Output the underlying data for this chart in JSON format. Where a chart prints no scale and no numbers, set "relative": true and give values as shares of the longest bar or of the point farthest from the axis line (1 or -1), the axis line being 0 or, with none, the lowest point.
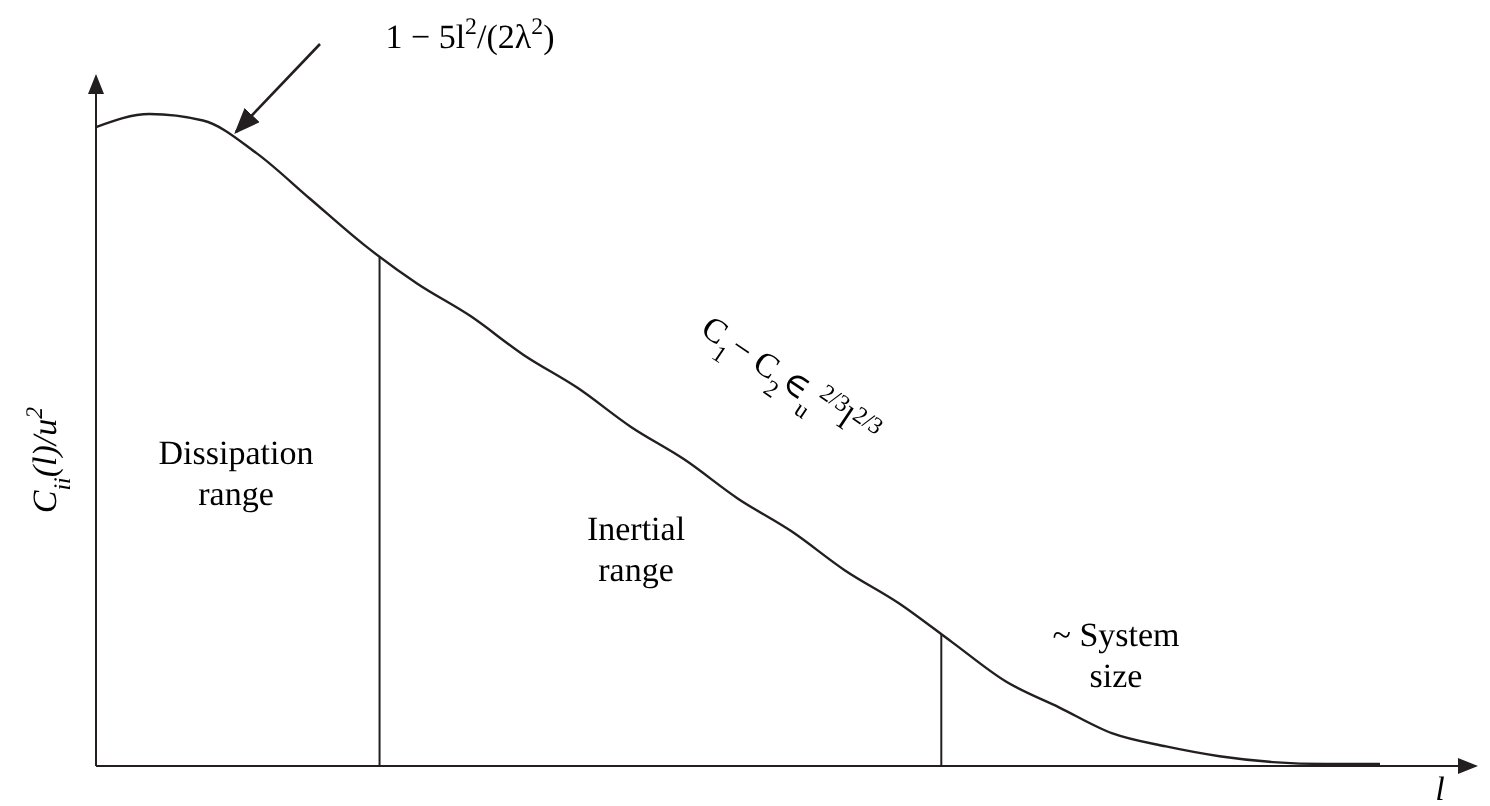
{
  "chart_data": {
    "type": "line",
    "relative": true,
    "xlabel": "l",
    "ylabel": "C$_{ii}$(l)/u$^{2}$",
    "categories": [
      null,
      null,
      null,
      null,
      null,
      null,
      null,
      null,
      null,
      null,
      null,
      null,
      null,
      null,
      null,
      null,
      null,
      null,
      null,
      null,
      null,
      null,
      null,
      null,
      null
    ],
    "series": [
      {
        "color": "#231f20",
        "values": [
          0.98,
          1.0,
          0.99,
          0.94,
          0.87,
          0.8,
          0.74,
          0.69,
          0.63,
          0.58,
          0.52,
          0.47,
          0.41,
          0.36,
          0.3,
          0.25,
          0.19,
          0.13,
          0.09,
          0.05,
          0.03,
          0.015,
          0.006,
          0.003,
          0.003
        ]
      }
    ],
    "annotations": [
      "1 − 5l$^{2}$/(2λ$^{2}$)",
      "Dissipation range",
      "Inertial range",
      "~ System size",
      "C$_{1}$− C$_{2}$∈$_{u}$$^{2/3}$l$^{2/3}$"
    ],
    "marker": "none",
    "line_style": "solid"
  }
}
